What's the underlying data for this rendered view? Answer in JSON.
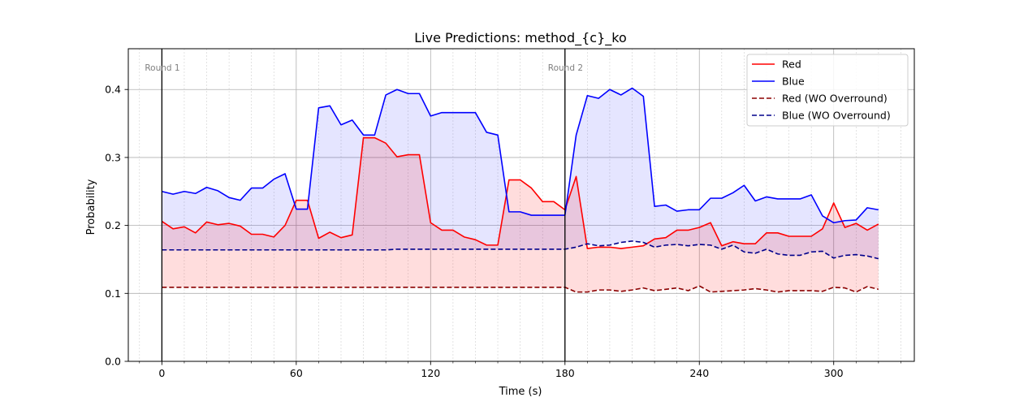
{
  "chart_data": {
    "type": "line",
    "title": "Live Predictions: method_{c}_ko",
    "xlabel": "Time (s)",
    "ylabel": "Probability",
    "xlim": [
      -15,
      336
    ],
    "ylim": [
      0,
      0.46
    ],
    "x_ticks": [
      0,
      60,
      120,
      180,
      240,
      300
    ],
    "y_ticks": [
      0.0,
      0.1,
      0.2,
      0.3,
      0.4
    ],
    "x_tick_labels": [
      "0",
      "60",
      "120",
      "180",
      "240",
      "300"
    ],
    "y_tick_labels": [
      "0.0",
      "0.1",
      "0.2",
      "0.3",
      "0.4"
    ],
    "x_minor_step": 10,
    "grid": true,
    "legend_position": "top-right",
    "round_markers": [
      {
        "x": 0,
        "label": "Round 1"
      },
      {
        "x": 180,
        "label": "Round 2"
      }
    ],
    "x": [
      0,
      5,
      10,
      15,
      20,
      25,
      30,
      35,
      40,
      45,
      50,
      55,
      60,
      65,
      70,
      75,
      80,
      85,
      90,
      95,
      100,
      105,
      110,
      115,
      120,
      125,
      130,
      135,
      140,
      145,
      150,
      155,
      160,
      165,
      170,
      175,
      180,
      185,
      190,
      195,
      200,
      205,
      210,
      215,
      220,
      225,
      230,
      235,
      240,
      245,
      250,
      255,
      260,
      265,
      270,
      275,
      280,
      285,
      290,
      295,
      300,
      305,
      310,
      315,
      320
    ],
    "series": [
      {
        "name": "Red",
        "color": "#ff0000",
        "style": "solid",
        "fill": "#ff000022",
        "values": [
          0.206,
          0.195,
          0.198,
          0.189,
          0.205,
          0.201,
          0.203,
          0.199,
          0.187,
          0.187,
          0.183,
          0.2,
          0.237,
          0.237,
          0.181,
          0.19,
          0.182,
          0.186,
          0.329,
          0.329,
          0.321,
          0.301,
          0.304,
          0.304,
          0.204,
          0.193,
          0.193,
          0.183,
          0.179,
          0.171,
          0.171,
          0.267,
          0.267,
          0.255,
          0.235,
          0.235,
          0.223,
          0.272,
          0.166,
          0.168,
          0.168,
          0.166,
          0.168,
          0.17,
          0.18,
          0.182,
          0.193,
          0.193,
          0.197,
          0.204,
          0.17,
          0.176,
          0.173,
          0.173,
          0.189,
          0.189,
          0.184,
          0.184,
          0.184,
          0.195,
          0.233,
          0.197,
          0.203,
          0.193,
          0.202
        ]
      },
      {
        "name": "Blue",
        "color": "#0000ff",
        "style": "solid",
        "fill": "#0000ff1a",
        "values": [
          0.25,
          0.246,
          0.25,
          0.247,
          0.256,
          0.251,
          0.241,
          0.237,
          0.255,
          0.255,
          0.268,
          0.276,
          0.224,
          0.224,
          0.373,
          0.376,
          0.348,
          0.355,
          0.333,
          0.333,
          0.392,
          0.4,
          0.394,
          0.394,
          0.361,
          0.366,
          0.366,
          0.366,
          0.366,
          0.337,
          0.333,
          0.22,
          0.22,
          0.215,
          0.215,
          0.215,
          0.215,
          0.333,
          0.391,
          0.387,
          0.4,
          0.392,
          0.402,
          0.39,
          0.228,
          0.23,
          0.221,
          0.223,
          0.223,
          0.24,
          0.24,
          0.248,
          0.259,
          0.236,
          0.242,
          0.239,
          0.239,
          0.239,
          0.245,
          0.214,
          0.204,
          0.207,
          0.208,
          0.226,
          0.223
        ]
      },
      {
        "name": "Red (WO Overround)",
        "color": "#8b0000",
        "style": "dashed",
        "values": [
          0.109,
          0.109,
          0.109,
          0.109,
          0.109,
          0.109,
          0.109,
          0.109,
          0.109,
          0.109,
          0.109,
          0.109,
          0.109,
          0.109,
          0.109,
          0.109,
          0.109,
          0.109,
          0.109,
          0.109,
          0.109,
          0.109,
          0.109,
          0.109,
          0.109,
          0.109,
          0.109,
          0.109,
          0.109,
          0.109,
          0.109,
          0.109,
          0.109,
          0.109,
          0.109,
          0.109,
          0.109,
          0.102,
          0.102,
          0.105,
          0.105,
          0.103,
          0.105,
          0.108,
          0.104,
          0.106,
          0.108,
          0.104,
          0.111,
          0.102,
          0.103,
          0.104,
          0.105,
          0.107,
          0.105,
          0.102,
          0.104,
          0.104,
          0.104,
          0.103,
          0.109,
          0.108,
          0.102,
          0.11,
          0.106
        ]
      },
      {
        "name": "Blue (WO Overround)",
        "color": "#00008b",
        "style": "dashed",
        "values": [
          0.164,
          0.164,
          0.164,
          0.164,
          0.164,
          0.164,
          0.164,
          0.164,
          0.164,
          0.164,
          0.164,
          0.164,
          0.164,
          0.164,
          0.164,
          0.164,
          0.164,
          0.164,
          0.164,
          0.164,
          0.164,
          0.165,
          0.165,
          0.165,
          0.165,
          0.165,
          0.165,
          0.165,
          0.165,
          0.165,
          0.165,
          0.165,
          0.165,
          0.165,
          0.165,
          0.165,
          0.165,
          0.168,
          0.173,
          0.17,
          0.171,
          0.175,
          0.177,
          0.175,
          0.168,
          0.171,
          0.172,
          0.17,
          0.172,
          0.171,
          0.165,
          0.171,
          0.161,
          0.159,
          0.165,
          0.158,
          0.156,
          0.156,
          0.161,
          0.162,
          0.152,
          0.156,
          0.157,
          0.155,
          0.151
        ]
      }
    ]
  }
}
